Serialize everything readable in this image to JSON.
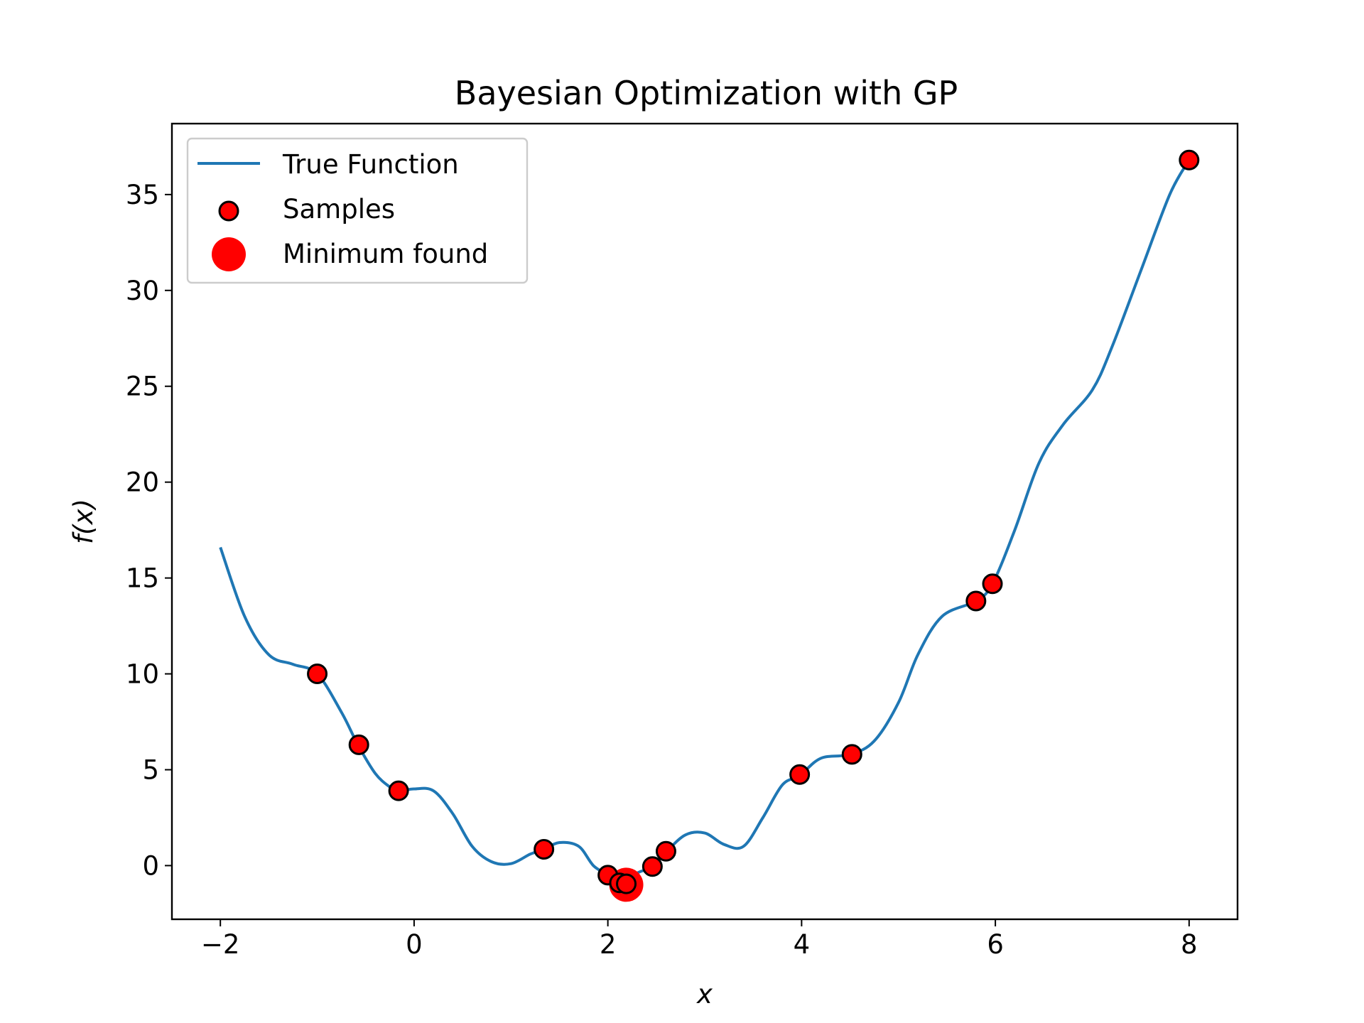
{
  "chart_data": {
    "type": "line",
    "title": "Bayesian Optimization with GP",
    "xlabel": "x",
    "ylabel": "f(x)",
    "xlim": [
      -2.5,
      8.5
    ],
    "ylim": [
      -2.8,
      38.7
    ],
    "xticks": [
      -2,
      0,
      2,
      4,
      6,
      8
    ],
    "xtick_labels": [
      "−2",
      "0",
      "2",
      "4",
      "6",
      "8"
    ],
    "yticks": [
      0,
      5,
      10,
      15,
      20,
      25,
      30,
      35
    ],
    "ytick_labels": [
      "0",
      "5",
      "10",
      "15",
      "20",
      "25",
      "30",
      "35"
    ],
    "grid": false,
    "legend": {
      "position": "top-left",
      "entries": [
        "True Function",
        "Samples",
        "Minimum found"
      ]
    },
    "series": [
      {
        "name": "True Function",
        "kind": "line",
        "color": "#1f77b4",
        "x": [
          -2.0,
          -1.75,
          -1.5,
          -1.25,
          -1.0,
          -0.75,
          -0.58,
          -0.4,
          -0.25,
          -0.16,
          0.0,
          0.2,
          0.4,
          0.6,
          0.8,
          1.0,
          1.2,
          1.34,
          1.5,
          1.7,
          1.85,
          2.0,
          2.1,
          2.18,
          2.3,
          2.46,
          2.6,
          2.8,
          3.0,
          3.2,
          3.4,
          3.6,
          3.8,
          3.98,
          4.2,
          4.5,
          4.75,
          5.0,
          5.2,
          5.45,
          5.8,
          5.97,
          6.2,
          6.45,
          6.7,
          7.0,
          7.2,
          7.5,
          7.8,
          8.0
        ],
        "y": [
          16.6,
          13.0,
          11.0,
          10.5,
          10.0,
          8.0,
          6.3,
          4.8,
          4.1,
          3.9,
          4.0,
          3.9,
          2.7,
          1.0,
          0.2,
          0.1,
          0.6,
          0.85,
          1.2,
          1.0,
          0.0,
          -0.5,
          -1.0,
          -0.95,
          -0.4,
          -0.05,
          0.7,
          1.6,
          1.7,
          1.1,
          1.0,
          2.5,
          4.2,
          4.7,
          5.6,
          5.8,
          6.5,
          8.5,
          11.0,
          13.0,
          13.8,
          14.7,
          17.5,
          21.0,
          23.0,
          24.8,
          27.0,
          31.0,
          35.0,
          36.8
        ]
      },
      {
        "name": "Samples",
        "kind": "scatter",
        "color": "#ff0000",
        "edgecolor": "#000000",
        "x": [
          -1.0,
          -0.57,
          -0.16,
          1.34,
          2.0,
          2.12,
          2.19,
          2.46,
          2.6,
          3.98,
          4.52,
          5.8,
          5.97,
          8.0
        ],
        "y": [
          10.0,
          6.3,
          3.9,
          0.85,
          -0.5,
          -0.9,
          -0.95,
          -0.05,
          0.75,
          4.75,
          5.8,
          13.8,
          14.7,
          36.8
        ]
      },
      {
        "name": "Minimum found",
        "kind": "point",
        "color": "#ff0000",
        "x": [
          2.19
        ],
        "y": [
          -1.0
        ]
      }
    ]
  }
}
